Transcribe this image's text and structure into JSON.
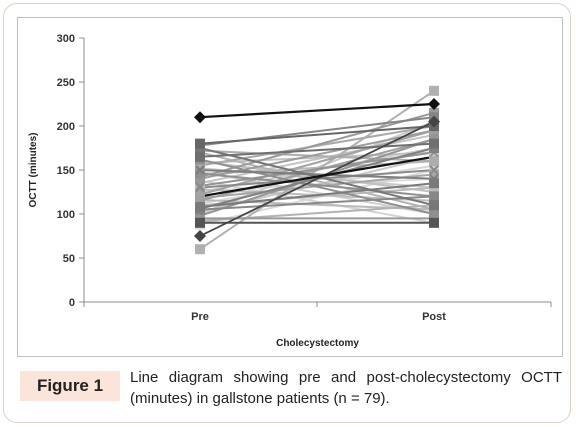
{
  "figure": {
    "label": "Figure 1",
    "caption": "Line diagram showing pre and post-cholecystectomy OCTT (minutes) in gallstone patients (n = 79)."
  },
  "chart_data": {
    "type": "line",
    "title": "",
    "xlabel": "Cholecystectomy",
    "ylabel": "OCTT (minutes)",
    "categories": [
      "Pre",
      "Post"
    ],
    "ylim": [
      0,
      300
    ],
    "yticks": [
      0,
      50,
      100,
      150,
      200,
      250,
      300
    ],
    "grid": false,
    "legend": "none",
    "series": [
      {
        "values": [
          210,
          225
        ],
        "color": "#111111",
        "marker": "diamond",
        "width": 2.2
      },
      {
        "values": [
          120,
          165
        ],
        "color": "#111111",
        "marker": "none",
        "width": 2.2
      },
      {
        "values": [
          75,
          205
        ],
        "color": "#444444",
        "marker": "diamond",
        "width": 1.8
      },
      {
        "values": [
          60,
          240
        ],
        "color": "#b0b0b0",
        "marker": "square",
        "width": 2
      },
      {
        "values": [
          180,
          200
        ],
        "color": "#666666",
        "marker": "square",
        "width": 2
      },
      {
        "values": [
          175,
          110
        ],
        "color": "#777777",
        "marker": "square",
        "width": 2
      },
      {
        "values": [
          90,
          90
        ],
        "color": "#555555",
        "marker": "square",
        "width": 2
      },
      {
        "values": [
          95,
          95
        ],
        "color": "#999999",
        "marker": "none",
        "width": 2
      },
      {
        "values": [
          100,
          205
        ],
        "color": "#cccccc",
        "marker": "square",
        "width": 2
      },
      {
        "values": [
          105,
          120
        ],
        "color": "#888888",
        "marker": "square",
        "width": 2
      },
      {
        "values": [
          110,
          130
        ],
        "color": "#bbbbbb",
        "marker": "square",
        "width": 2
      },
      {
        "values": [
          115,
          185
        ],
        "color": "#a0a0a0",
        "marker": "square",
        "width": 2
      },
      {
        "values": [
          125,
          175
        ],
        "color": "#d0d0d0",
        "marker": "square",
        "width": 2
      },
      {
        "values": [
          130,
          150
        ],
        "color": "#8a8a8a",
        "marker": "x",
        "width": 2
      },
      {
        "values": [
          135,
          190
        ],
        "color": "#c4c4c4",
        "marker": "square",
        "width": 2
      },
      {
        "values": [
          140,
          195
        ],
        "color": "#9c9c9c",
        "marker": "square",
        "width": 2
      },
      {
        "values": [
          145,
          160
        ],
        "color": "#b8b8b8",
        "marker": "square",
        "width": 2
      },
      {
        "values": [
          150,
          140
        ],
        "color": "#7d7d7d",
        "marker": "x",
        "width": 2
      },
      {
        "values": [
          155,
          200
        ],
        "color": "#a8a8a8",
        "marker": "square",
        "width": 2
      },
      {
        "values": [
          160,
          125
        ],
        "color": "#c0c0c0",
        "marker": "square",
        "width": 2
      },
      {
        "values": [
          165,
          180
        ],
        "color": "#6f6f6f",
        "marker": "square",
        "width": 2
      },
      {
        "values": [
          170,
          105
        ],
        "color": "#b4b4b4",
        "marker": "square",
        "width": 2
      },
      {
        "values": [
          178,
          210
        ],
        "color": "#858585",
        "marker": "square",
        "width": 2
      },
      {
        "values": [
          148,
          100
        ],
        "color": "#cfcfcf",
        "marker": "square",
        "width": 2
      },
      {
        "values": [
          132,
          170
        ],
        "color": "#939393",
        "marker": "x",
        "width": 2
      },
      {
        "values": [
          128,
          115
        ],
        "color": "#bdbdbd",
        "marker": "square",
        "width": 2
      },
      {
        "values": [
          118,
          145
        ],
        "color": "#a6a6a6",
        "marker": "square",
        "width": 2
      },
      {
        "values": [
          112,
          155
        ],
        "color": "#d6d6d6",
        "marker": "square",
        "width": 2
      },
      {
        "values": [
          108,
          135
        ],
        "color": "#7a7a7a",
        "marker": "square",
        "width": 2
      },
      {
        "values": [
          102,
          165
        ],
        "color": "#c8c8c8",
        "marker": "square",
        "width": 2
      },
      {
        "values": [
          98,
          185
        ],
        "color": "#959595",
        "marker": "square",
        "width": 2
      },
      {
        "values": [
          92,
          110
        ],
        "color": "#b2b2b2",
        "marker": "square",
        "width": 2
      },
      {
        "values": [
          88,
          150
        ],
        "color": "#dadada",
        "marker": "square",
        "width": 2
      },
      {
        "values": [
          142,
          215
        ],
        "color": "#9a9a9a",
        "marker": "square",
        "width": 2
      },
      {
        "values": [
          158,
          170
        ],
        "color": "#c2c2c2",
        "marker": "x",
        "width": 2
      },
      {
        "values": [
          162,
          100
        ],
        "color": "#8f8f8f",
        "marker": "square",
        "width": 2
      },
      {
        "values": [
          138,
          90
        ],
        "color": "#d3d3d3",
        "marker": "square",
        "width": 2
      },
      {
        "values": [
          122,
          195
        ],
        "color": "#a3a3a3",
        "marker": "square",
        "width": 2
      },
      {
        "values": [
          116,
          105
        ],
        "color": "#bababa",
        "marker": "square",
        "width": 2
      },
      {
        "values": [
          106,
          175
        ],
        "color": "#808080",
        "marker": "square",
        "width": 2
      },
      {
        "values": [
          172,
          160
        ],
        "color": "#adadad",
        "marker": "square",
        "width": 2
      },
      {
        "values": [
          152,
          130
        ],
        "color": "#cacaca",
        "marker": "square",
        "width": 2
      },
      {
        "values": [
          146,
          120
        ],
        "color": "#909090",
        "marker": "square",
        "width": 2
      },
      {
        "values": [
          126,
          140
        ],
        "color": "#dedede",
        "marker": "square",
        "width": 2
      }
    ]
  }
}
